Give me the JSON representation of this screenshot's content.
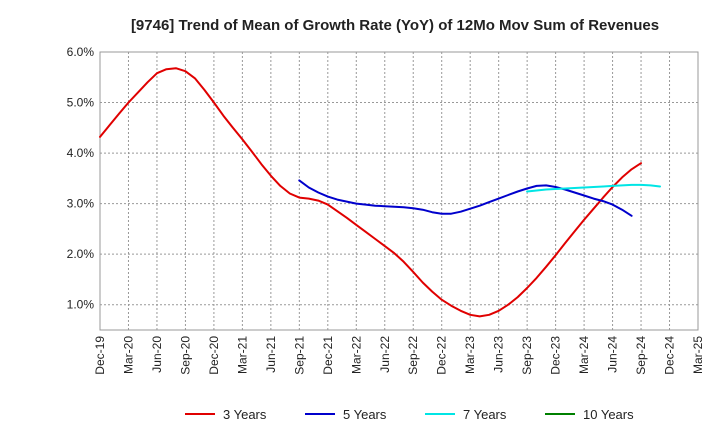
{
  "chart_data": {
    "type": "line",
    "title": "[9746]  Trend of Mean of Growth Rate (YoY) of 12Mo Mov Sum of Revenues",
    "xlabel": "",
    "ylabel": "",
    "ylim": [
      0.5,
      6.0
    ],
    "y_ticks": [
      "1.0%",
      "2.0%",
      "3.0%",
      "4.0%",
      "5.0%",
      "6.0%"
    ],
    "y_tick_values": [
      1.0,
      2.0,
      3.0,
      4.0,
      5.0,
      6.0
    ],
    "x_tick_labels": [
      "Dec-19",
      "Mar-20",
      "Jun-20",
      "Sep-20",
      "Dec-20",
      "Mar-21",
      "Jun-21",
      "Sep-21",
      "Dec-21",
      "Mar-22",
      "Jun-22",
      "Sep-22",
      "Dec-22",
      "Mar-23",
      "Jun-23",
      "Sep-23",
      "Dec-23",
      "Mar-24",
      "Jun-24",
      "Sep-24",
      "Dec-24",
      "Mar-25"
    ],
    "x_month_count": 63,
    "grid": true,
    "legend_position": "bottom",
    "series": [
      {
        "name": "3 Years",
        "color": "#e00000",
        "start_index": 0,
        "values": [
          4.32,
          4.55,
          4.78,
          5.0,
          5.2,
          5.4,
          5.58,
          5.66,
          5.68,
          5.62,
          5.48,
          5.25,
          5.0,
          4.74,
          4.5,
          4.27,
          4.03,
          3.78,
          3.55,
          3.35,
          3.2,
          3.12,
          3.1,
          3.06,
          2.98,
          2.85,
          2.72,
          2.58,
          2.44,
          2.3,
          2.16,
          2.02,
          1.85,
          1.65,
          1.44,
          1.26,
          1.1,
          0.98,
          0.88,
          0.8,
          0.77,
          0.8,
          0.88,
          1.0,
          1.15,
          1.33,
          1.53,
          1.75,
          1.98,
          2.22,
          2.45,
          2.68,
          2.9,
          3.12,
          3.33,
          3.52,
          3.68,
          3.8
        ]
      },
      {
        "name": "5 Years",
        "color": "#0000cc",
        "start_index": 21,
        "values": [
          3.46,
          3.32,
          3.22,
          3.14,
          3.08,
          3.04,
          3.0,
          2.98,
          2.96,
          2.95,
          2.94,
          2.93,
          2.91,
          2.88,
          2.83,
          2.8,
          2.8,
          2.84,
          2.9,
          2.96,
          3.03,
          3.1,
          3.17,
          3.24,
          3.3,
          3.35,
          3.36,
          3.33,
          3.28,
          3.22,
          3.16,
          3.1,
          3.05,
          2.98,
          2.88,
          2.76
        ]
      },
      {
        "name": "7 Years",
        "color": "#00e5e5",
        "start_index": 45,
        "values": [
          3.24,
          3.26,
          3.28,
          3.29,
          3.3,
          3.31,
          3.32,
          3.33,
          3.34,
          3.35,
          3.36,
          3.37,
          3.37,
          3.36,
          3.34
        ]
      },
      {
        "name": "10 Years",
        "color": "#008000",
        "start_index": 0,
        "values": []
      }
    ]
  }
}
